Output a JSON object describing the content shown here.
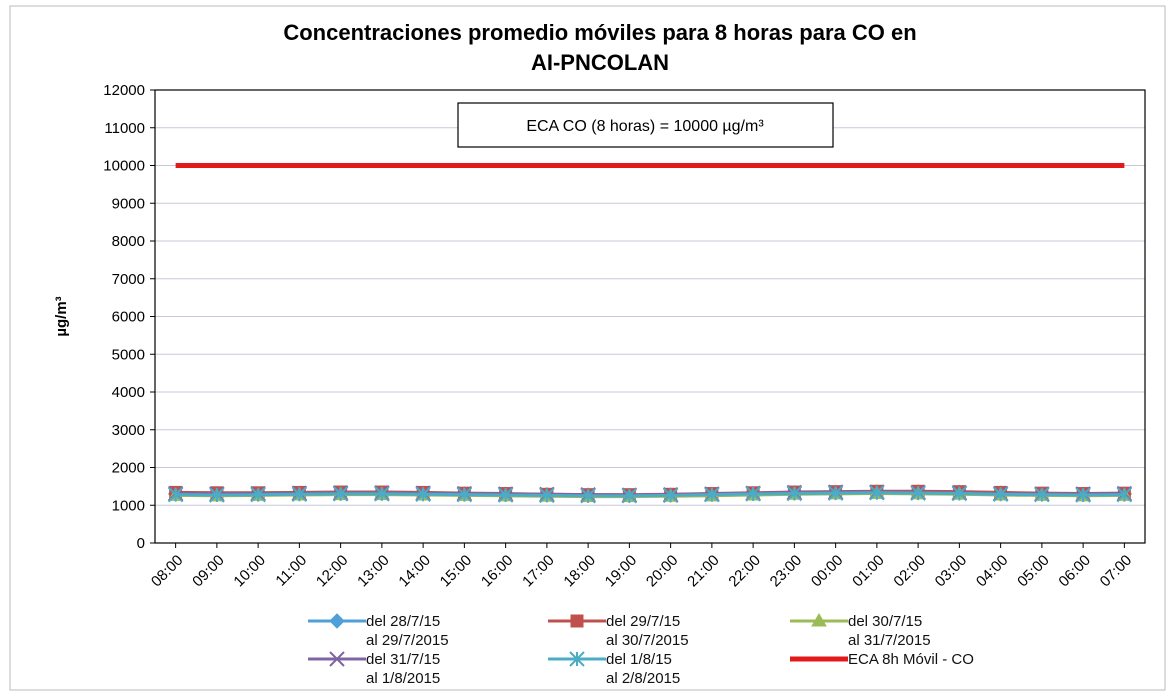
{
  "chart_data": {
    "type": "line",
    "title": "Concentraciones promedio móviles para 8 horas para CO en\nAI-PNCOLAN",
    "ylabel": "µg/m³",
    "annotation": "ECA CO (8 horas) = 10000 µg/m³",
    "categories": [
      "08:00",
      "09:00",
      "10:00",
      "11:00",
      "12:00",
      "13:00",
      "14:00",
      "15:00",
      "16:00",
      "17:00",
      "18:00",
      "19:00",
      "20:00",
      "21:00",
      "22:00",
      "23:00",
      "00:00",
      "01:00",
      "02:00",
      "03:00",
      "04:00",
      "05:00",
      "06:00",
      "07:00"
    ],
    "series": [
      {
        "name": "del 28/7/15\nal 29/7/2015",
        "color": "#4f9fd8",
        "marker": "diamond",
        "values": [
          1300,
          1290,
          1300,
          1310,
          1320,
          1320,
          1310,
          1300,
          1290,
          1280,
          1270,
          1260,
          1270,
          1290,
          1310,
          1330,
          1340,
          1350,
          1350,
          1340,
          1320,
          1300,
          1290,
          1300
        ]
      },
      {
        "name": "del 29/7/15\nal 30/7/2015",
        "color": "#c0504d",
        "marker": "square",
        "values": [
          1340,
          1330,
          1330,
          1340,
          1350,
          1350,
          1340,
          1320,
          1310,
          1290,
          1280,
          1280,
          1290,
          1310,
          1330,
          1350,
          1360,
          1370,
          1370,
          1360,
          1340,
          1320,
          1310,
          1320
        ]
      },
      {
        "name": "del 30/7/15\nal 31/7/2015",
        "color": "#9bbb59",
        "marker": "triangle",
        "values": [
          1260,
          1250,
          1260,
          1270,
          1280,
          1280,
          1270,
          1260,
          1250,
          1240,
          1230,
          1230,
          1240,
          1250,
          1270,
          1290,
          1300,
          1310,
          1300,
          1290,
          1270,
          1260,
          1250,
          1260
        ]
      },
      {
        "name": "del 31/7/15\nal 1/8/2015",
        "color": "#8064a2",
        "marker": "x",
        "values": [
          1310,
          1300,
          1310,
          1320,
          1330,
          1330,
          1320,
          1310,
          1300,
          1290,
          1280,
          1270,
          1280,
          1300,
          1320,
          1340,
          1350,
          1350,
          1340,
          1330,
          1310,
          1300,
          1300,
          1310
        ]
      },
      {
        "name": "del 1/8/15\nal 2/8/2015",
        "color": "#4bacc6",
        "marker": "star",
        "values": [
          1280,
          1270,
          1280,
          1290,
          1300,
          1300,
          1290,
          1280,
          1270,
          1260,
          1250,
          1250,
          1260,
          1280,
          1300,
          1310,
          1320,
          1330,
          1320,
          1310,
          1290,
          1280,
          1270,
          1280
        ]
      },
      {
        "name": "ECA 8h Móvil - CO",
        "color": "#e31a1c",
        "marker": "none",
        "values": [
          10000,
          10000,
          10000,
          10000,
          10000,
          10000,
          10000,
          10000,
          10000,
          10000,
          10000,
          10000,
          10000,
          10000,
          10000,
          10000,
          10000,
          10000,
          10000,
          10000,
          10000,
          10000,
          10000,
          10000
        ]
      }
    ],
    "ylim": [
      0,
      12000
    ],
    "yticks": [
      0,
      1000,
      2000,
      3000,
      4000,
      5000,
      6000,
      7000,
      8000,
      9000,
      10000,
      11000,
      12000
    ],
    "grid": true
  }
}
